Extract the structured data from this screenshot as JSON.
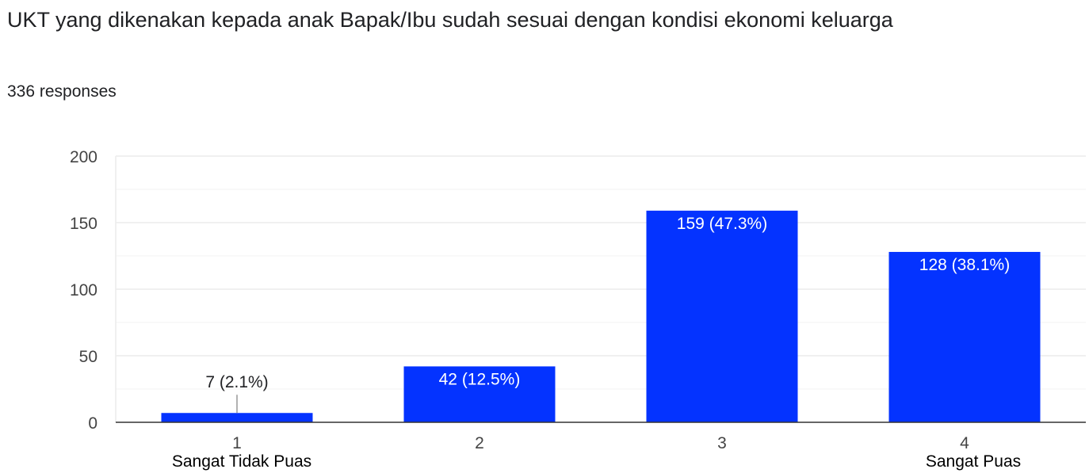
{
  "question": {
    "title": "UKT yang dikenakan kepada anak Bapak/Ibu sudah sesuai dengan kondisi ekonomi keluarga",
    "responses": "336 responses"
  },
  "colors": {
    "bar": "#0433ff",
    "grid": "#ececec",
    "axis": "#333333",
    "label_inside": "#ffffff",
    "label_outside": "#202124",
    "tick": "#444444"
  },
  "chart_data": {
    "type": "bar",
    "categories": [
      "1",
      "2",
      "3",
      "4"
    ],
    "category_sublabels": [
      "Sangat Tidak Puas",
      "",
      "",
      "Sangat Puas"
    ],
    "values": [
      7,
      42,
      159,
      128
    ],
    "data_labels": [
      "7 (2.1%)",
      "42 (12.5%)",
      "159 (47.3%)",
      "128 (38.1%)"
    ],
    "ylim": [
      0,
      200
    ],
    "yticks": [
      0,
      50,
      100,
      150,
      200
    ],
    "minor_gridlines": [
      25,
      75,
      125,
      175
    ],
    "grid": true,
    "legend": "none",
    "title": "",
    "xlabel": "",
    "ylabel": ""
  }
}
